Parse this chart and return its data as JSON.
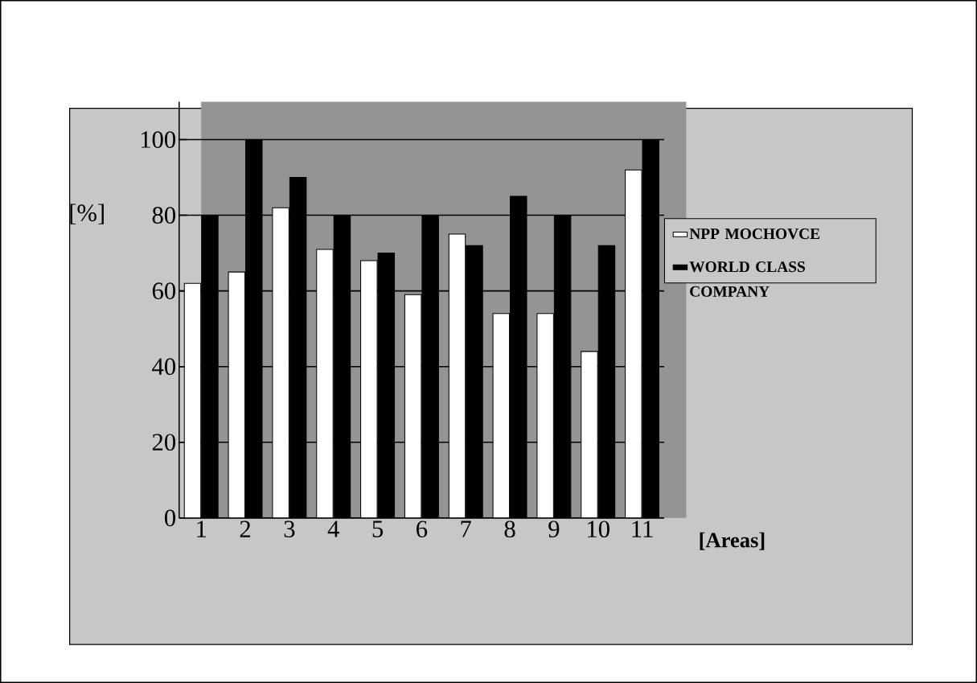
{
  "chart_data": {
    "type": "bar",
    "xlabel": "[Areas]",
    "ylabel": "[%]",
    "categories": [
      "1",
      "2",
      "3",
      "4",
      "5",
      "6",
      "7",
      "8",
      "9",
      "10",
      "11"
    ],
    "series": [
      {
        "name": "NPP MOCHOVCE",
        "color": "#ffffff",
        "values": [
          62,
          65,
          82,
          71,
          68,
          59,
          75,
          54,
          54,
          44,
          92
        ]
      },
      {
        "name": "WORLD CLASS COMPANY",
        "color": "#000000",
        "values": [
          80,
          100,
          90,
          80,
          70,
          80,
          72,
          85,
          80,
          72,
          100
        ]
      }
    ],
    "ylim": [
      0,
      110
    ],
    "yticks": [
      0,
      20,
      40,
      60,
      80,
      100
    ],
    "grid": "y",
    "legend": "right"
  }
}
